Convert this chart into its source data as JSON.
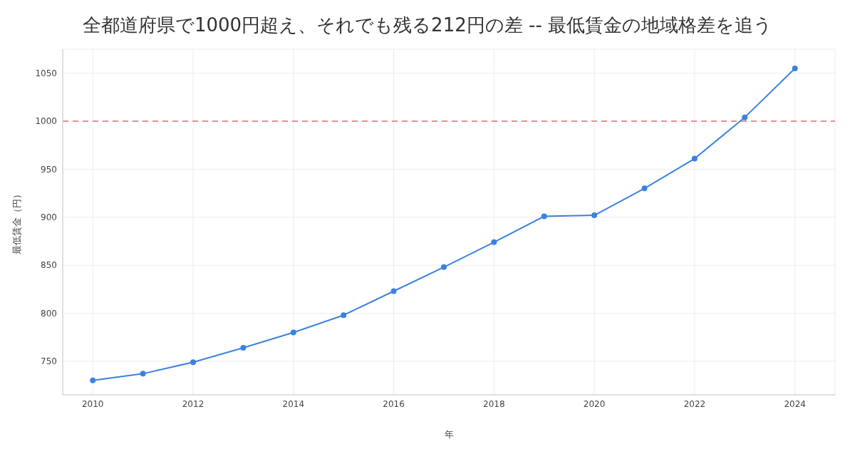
{
  "chart_data": {
    "type": "line",
    "title": "全都道府県で1000円超え、それでも残る212円の差 -- 最低賃金の地域格差を追う",
    "xlabel": "年",
    "ylabel": "最低賃金（円）",
    "x": [
      2010,
      2011,
      2012,
      2013,
      2014,
      2015,
      2016,
      2017,
      2018,
      2019,
      2020,
      2021,
      2022,
      2023,
      2024
    ],
    "series": [
      {
        "color": "#3b82e0",
        "values": [
          730,
          737,
          749,
          764,
          780,
          798,
          823,
          848,
          874,
          901,
          902,
          930,
          961,
          1004,
          1055
        ]
      }
    ],
    "xlim": [
      2009.4,
      2024.8
    ],
    "xticks": [
      2010,
      2012,
      2014,
      2016,
      2018,
      2020,
      2022,
      2024
    ],
    "ylim": [
      715,
      1075
    ],
    "yticks": [
      750,
      800,
      850,
      900,
      950,
      1000,
      1050
    ],
    "ref_lines": [
      {
        "axis": "y",
        "value": 1000,
        "color": "#e89090",
        "line_style": "dashed"
      }
    ],
    "grid": true,
    "marker": "circle",
    "line_style": "solid",
    "legend": false
  }
}
